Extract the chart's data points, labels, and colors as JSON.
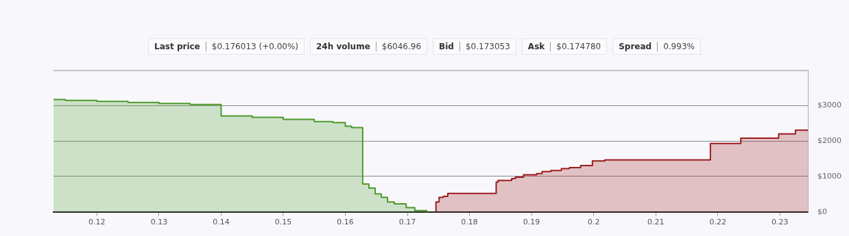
{
  "chart_data": {
    "type": "step",
    "xlim": [
      0.113,
      0.2345
    ],
    "xticks": [
      0.12,
      0.13,
      0.14,
      0.15,
      0.16,
      0.17,
      0.18,
      0.19,
      0.2,
      0.21,
      0.22,
      0.23
    ],
    "ylim": [
      0,
      4000
    ],
    "yticks": [
      {
        "value": 0,
        "label": "$0"
      },
      {
        "value": 1000,
        "label": "$1000"
      },
      {
        "value": 2000,
        "label": "$2000"
      },
      {
        "value": 3000,
        "label": "$3000"
      }
    ],
    "grid": "y",
    "legend": false,
    "marker": "none",
    "annotations": [
      "Last price",
      "$0.176013 (+0.00%)",
      "24h volume",
      "$6046.96",
      "Bid",
      "$0.173053",
      "Ask",
      "$0.174780",
      "Spread",
      "0.993%"
    ],
    "series": [
      {
        "color": "#4c9a2a",
        "x": [
          0.113,
          0.1149,
          0.12,
          0.125,
          0.13,
          0.135,
          0.14,
          0.145,
          0.15,
          0.155,
          0.158,
          0.16,
          0.161,
          0.1628,
          0.1638,
          0.1648,
          0.1658,
          0.1668,
          0.1679,
          0.1698,
          0.1712,
          0.1731
        ],
        "values": [
          3170,
          3150,
          3120,
          3090,
          3060,
          3030,
          2710,
          2670,
          2610,
          2550,
          2520,
          2420,
          2380,
          790,
          670,
          510,
          410,
          280,
          230,
          120,
          40,
          0
        ]
      },
      {
        "color": "#9b1c1c",
        "x": [
          0.1746,
          0.1746,
          0.1751,
          0.1758,
          0.1765,
          0.1843,
          0.1846,
          0.1868,
          0.1874,
          0.1887,
          0.1908,
          0.1917,
          0.1931,
          0.1948,
          0.1961,
          0.1979,
          0.1998,
          0.2018,
          0.2188,
          0.2237,
          0.2298,
          0.2325,
          0.2345
        ],
        "values": [
          0,
          280,
          410,
          440,
          520,
          840,
          890,
          940,
          980,
          1050,
          1080,
          1140,
          1170,
          1220,
          1250,
          1310,
          1440,
          1470,
          1930,
          2080,
          2200,
          2310,
          2310
        ]
      }
    ]
  }
}
